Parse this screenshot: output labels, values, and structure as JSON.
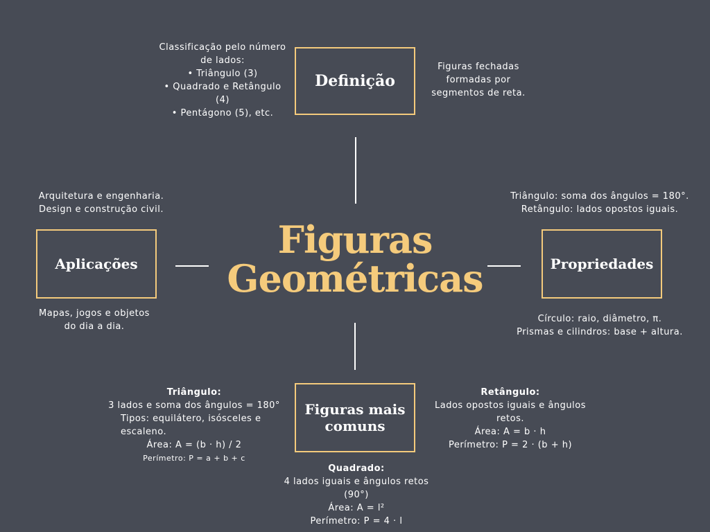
{
  "central_title": [
    "Figuras",
    "Geométricas"
  ],
  "boxes": {
    "definicao": "Definição",
    "aplicacoes": "Aplicações",
    "propriedades": "Propriedades",
    "figuras_comuns": "Figuras mais comuns"
  },
  "notes": {
    "classificacao": [
      "Classificação pelo número",
      "de lados:",
      "• Triângulo (3)",
      "• Quadrado e Retângulo",
      "(4)",
      "• Pentágono (5), etc."
    ],
    "definicao_texto": [
      "Figuras fechadas",
      "formadas por",
      "segmentos de reta."
    ],
    "aplicacoes_top": [
      "Arquitetura e engenharia.",
      "Design e construção civil."
    ],
    "aplicacoes_bottom": [
      "Mapas, jogos e objetos",
      "do dia a dia."
    ],
    "propriedades_top": [
      "Triângulo: soma dos ângulos = 180°.",
      "Retângulo: lados opostos iguais."
    ],
    "propriedades_bottom": [
      "Círculo: raio, diâmetro, π.",
      "Prismas e cilindros: base + altura."
    ],
    "triangulo": {
      "heading": "Triângulo:",
      "lines": [
        "3 lados e soma dos ângulos = 180°",
        "Tipos: equilátero, isósceles e",
        "escaleno.",
        "Área: A = (b · h) / 2"
      ],
      "small": "Perímetro: P = a + b + c"
    },
    "retangulo": {
      "heading": "Retângulo:",
      "lines": [
        "Lados opostos iguais e ângulos",
        "retos.",
        "Área: A = b · h",
        "Perímetro: P = 2 · (b + h)"
      ]
    },
    "quadrado": {
      "heading": "Quadrado:",
      "lines": [
        "4 lados iguais e ângulos retos",
        "(90°)",
        "Área: A = l²",
        "Perímetro: P = 4 · l"
      ]
    }
  },
  "colors": {
    "background": "#474b55",
    "accent": "#f5cb7c",
    "text": "#ffffff"
  }
}
